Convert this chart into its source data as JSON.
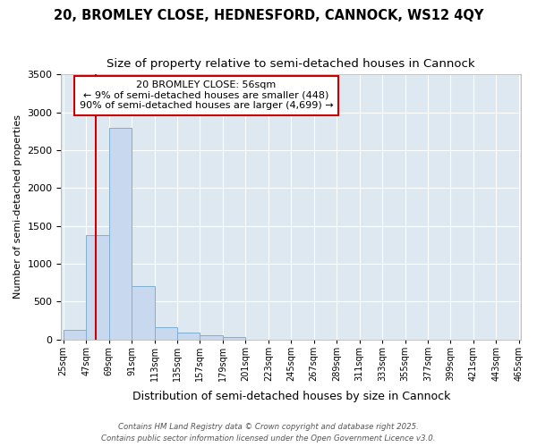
{
  "title": "20, BROMLEY CLOSE, HEDNESFORD, CANNOCK, WS12 4QY",
  "subtitle": "Size of property relative to semi-detached houses in Cannock",
  "xlabel": "Distribution of semi-detached houses by size in Cannock",
  "ylabel": "Number of semi-detached properties",
  "bin_edges": [
    25,
    47,
    69,
    91,
    113,
    135,
    157,
    179,
    201,
    223,
    245,
    267,
    289,
    311,
    333,
    355,
    377,
    399,
    421,
    443,
    465
  ],
  "bar_heights": [
    120,
    1380,
    2800,
    700,
    160,
    85,
    50,
    35,
    0,
    0,
    0,
    0,
    0,
    0,
    0,
    0,
    0,
    0,
    0,
    0
  ],
  "bar_color": "#c8d8ee",
  "bar_edgecolor": "#7fafd0",
  "bar_linewidth": 0.7,
  "property_size": 56,
  "property_line_color": "#cc0000",
  "annotation_line1": "20 BROMLEY CLOSE: 56sqm",
  "annotation_line2": "← 9% of semi-detached houses are smaller (448)",
  "annotation_line3": "90% of semi-detached houses are larger (4,699) →",
  "annotation_box_color": "#cc0000",
  "ylim": [
    0,
    3500
  ],
  "yticks": [
    0,
    500,
    1000,
    1500,
    2000,
    2500,
    3000,
    3500
  ],
  "plot_bg_color": "#dde8f0",
  "grid_color": "#ffffff",
  "title_fontsize": 10.5,
  "subtitle_fontsize": 9.5,
  "xlabel_fontsize": 9,
  "ylabel_fontsize": 8,
  "tick_fontsize": 7,
  "footer_line1": "Contains HM Land Registry data © Crown copyright and database right 2025.",
  "footer_line2": "Contains public sector information licensed under the Open Government Licence v3.0."
}
